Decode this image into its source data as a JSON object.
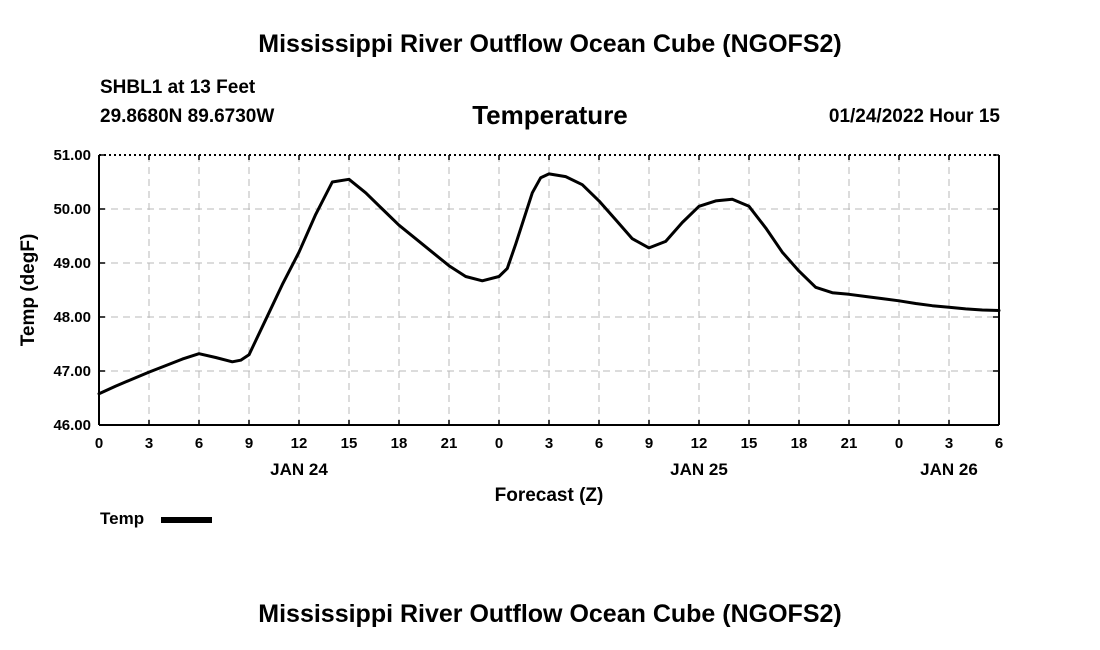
{
  "page": {
    "title_top": "Mississippi River Outflow Ocean Cube (NGOFS2)",
    "title_bottom": "Mississippi River Outflow Ocean Cube (NGOFS2)",
    "station_line1": "SHBL1 at 13 Feet",
    "station_line2": "29.8680N  89.6730W",
    "date_label": "01/24/2022 Hour 15"
  },
  "legend": {
    "label": "Temp",
    "color": "#000000"
  },
  "chart_data": {
    "type": "line",
    "title": "Temperature",
    "xlabel": "Forecast (Z)",
    "ylabel": "Temp (degF)",
    "ylim": [
      46.0,
      51.0
    ],
    "xlim": [
      0,
      54
    ],
    "grid": true,
    "y_ticks": [
      46.0,
      47.0,
      48.0,
      49.0,
      50.0,
      51.0
    ],
    "y_tick_labels": [
      "46.00",
      "47.00",
      "48.00",
      "49.00",
      "50.00",
      "51.00"
    ],
    "x_ticks": [
      0,
      3,
      6,
      9,
      12,
      15,
      18,
      21,
      24,
      27,
      30,
      33,
      36,
      39,
      42,
      45,
      48,
      51,
      54
    ],
    "x_tick_labels": [
      "0",
      "3",
      "6",
      "9",
      "12",
      "15",
      "18",
      "21",
      "0",
      "3",
      "6",
      "9",
      "12",
      "15",
      "18",
      "21",
      "0",
      "3",
      "6"
    ],
    "date_labels": [
      {
        "x": 12,
        "label": "JAN 24"
      },
      {
        "x": 36,
        "label": "JAN 25"
      },
      {
        "x": 51,
        "label": "JAN 26"
      }
    ],
    "series": [
      {
        "name": "Temp",
        "x": [
          0,
          1,
          2,
          3,
          4,
          5,
          6,
          7,
          8,
          8.5,
          9,
          10,
          11,
          12,
          13,
          14,
          15,
          16,
          17,
          18,
          19,
          20,
          21,
          22,
          23,
          24,
          24.5,
          25,
          26,
          26.5,
          27,
          28,
          29,
          30,
          31,
          32,
          33,
          34,
          35,
          36,
          37,
          38,
          39,
          40,
          41,
          42,
          43,
          44,
          45,
          46,
          47,
          48,
          49,
          50,
          51,
          52,
          53,
          54
        ],
        "values": [
          46.58,
          46.72,
          46.85,
          46.98,
          47.1,
          47.22,
          47.32,
          47.25,
          47.17,
          47.2,
          47.3,
          47.95,
          48.6,
          49.2,
          49.9,
          50.5,
          50.55,
          50.3,
          50.0,
          49.7,
          49.45,
          49.2,
          48.95,
          48.75,
          48.67,
          48.75,
          48.9,
          49.35,
          50.3,
          50.58,
          50.65,
          50.6,
          50.45,
          50.15,
          49.8,
          49.45,
          49.28,
          49.4,
          49.75,
          50.05,
          50.15,
          50.18,
          50.05,
          49.65,
          49.2,
          48.85,
          48.55,
          48.45,
          48.42,
          48.38,
          48.34,
          48.3,
          48.25,
          48.21,
          48.18,
          48.15,
          48.13,
          48.12
        ]
      }
    ]
  }
}
